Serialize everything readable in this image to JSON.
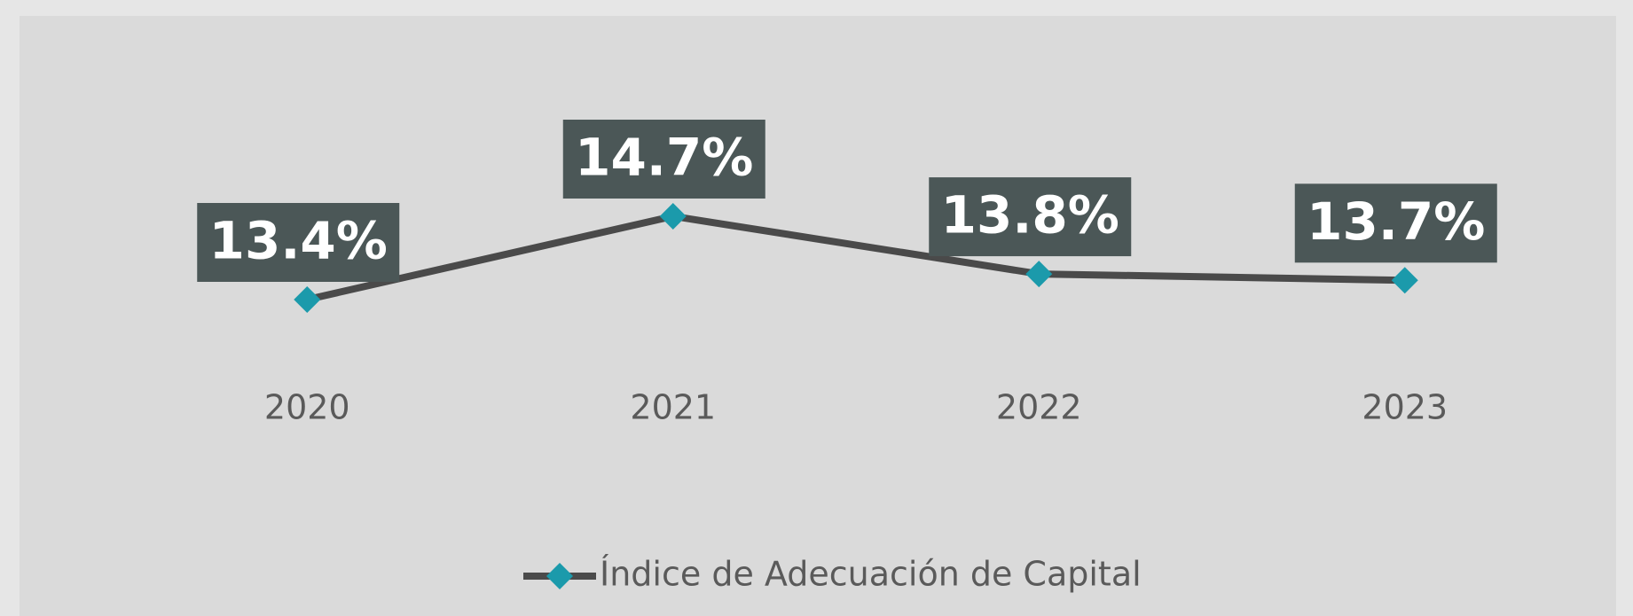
{
  "chart_data": {
    "type": "line",
    "categories": [
      "2020",
      "2021",
      "2022",
      "2023"
    ],
    "series": [
      {
        "name": "Índice de Adecuación de Capital",
        "color": "#4a4a4a",
        "marker_color": "#1b9aab",
        "values": [
          13.4,
          14.7,
          13.8,
          13.7
        ],
        "value_labels": [
          "13.4%",
          "14.7%",
          "13.8%",
          "13.7%"
        ]
      }
    ],
    "legend": "bottom"
  }
}
